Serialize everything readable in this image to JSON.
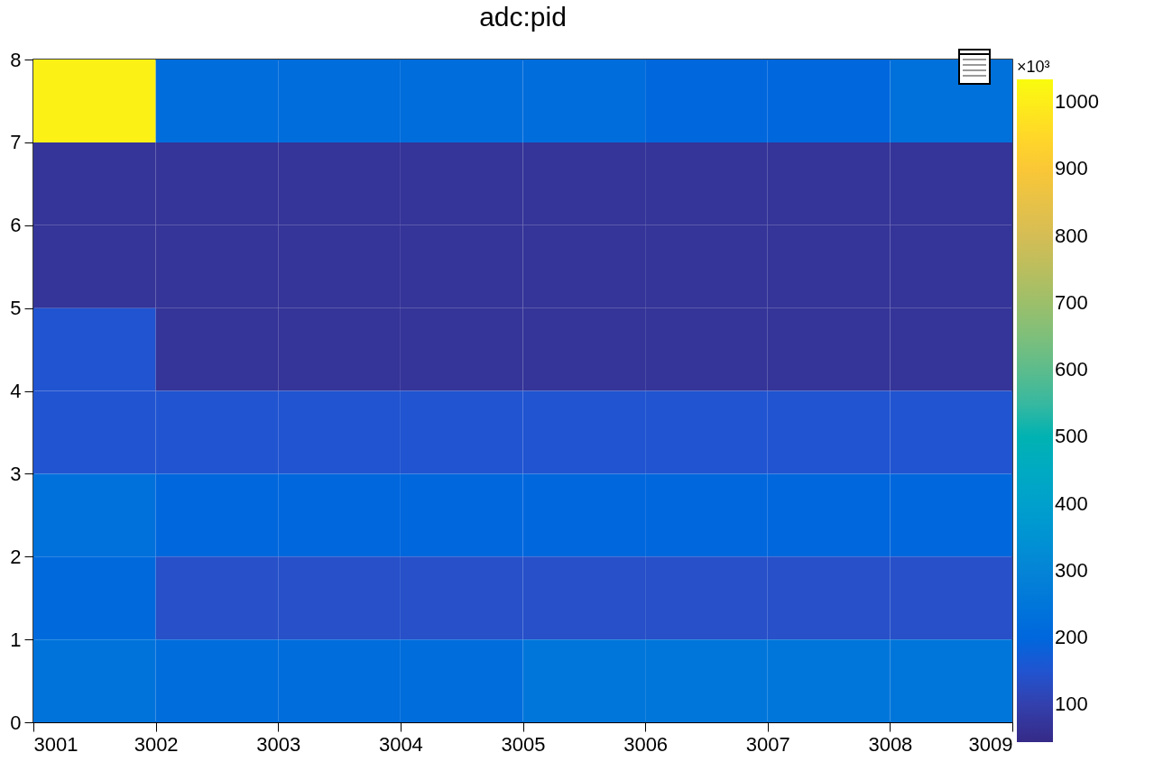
{
  "chart_data": {
    "type": "heatmap",
    "title": "adc:pid",
    "clabel": "×10³",
    "xlim": [
      3001,
      3009
    ],
    "xticks": [
      3001,
      3002,
      3003,
      3004,
      3005,
      3006,
      3007,
      3008,
      3009
    ],
    "ylim": [
      0,
      8
    ],
    "yticks": [
      0,
      1,
      2,
      3,
      4,
      5,
      6,
      7,
      8
    ],
    "cells": [
      [
        1010,
        220,
        220,
        220,
        220,
        200,
        200,
        230
      ],
      [
        70,
        70,
        70,
        70,
        70,
        70,
        70,
        70
      ],
      [
        70,
        70,
        70,
        70,
        70,
        70,
        70,
        70
      ],
      [
        150,
        70,
        70,
        70,
        70,
        70,
        70,
        70
      ],
      [
        150,
        150,
        150,
        150,
        150,
        150,
        150,
        150
      ],
      [
        230,
        200,
        200,
        200,
        200,
        200,
        200,
        200
      ],
      [
        210,
        140,
        140,
        140,
        140,
        140,
        140,
        140
      ],
      [
        240,
        220,
        220,
        220,
        250,
        250,
        250,
        250
      ]
    ],
    "clim": [
      44,
      1034
    ],
    "cticks": [
      100,
      200,
      300,
      400,
      500,
      600,
      700,
      800,
      900,
      1000
    ],
    "colors": [
      "#352a87",
      "#0f5cdd",
      "#1481d6",
      "#06a4ca",
      "#2eb7a4",
      "#87bf77",
      "#d1bb59",
      "#fec832",
      "#f9fb0e"
    ],
    "grid": false
  }
}
